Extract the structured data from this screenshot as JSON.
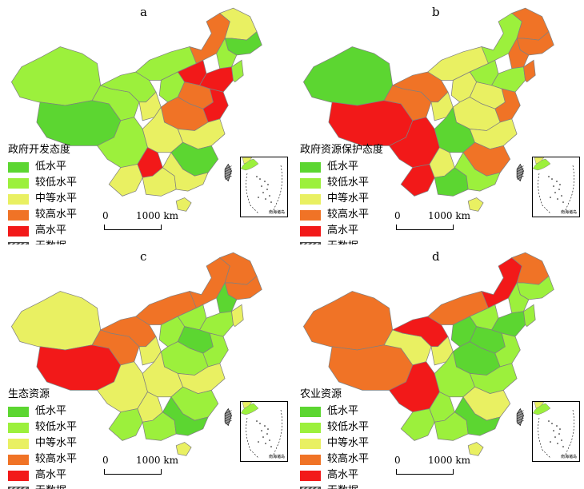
{
  "colors": {
    "low": "#5cd631",
    "lower": "#9cf03c",
    "mid": "#e9f062",
    "higher": "#f07326",
    "high": "#f21919",
    "nodata": "#555555",
    "border": "#808080"
  },
  "scale_bar": {
    "zero": "0",
    "dist": "1000 km"
  },
  "inset_caption": "南海诸岛",
  "panels": [
    {
      "label": "a",
      "legend_title": "政府开发态度",
      "legend": [
        "低水平",
        "较低水平",
        "中等水平",
        "较高水平",
        "高水平",
        "无数据"
      ],
      "regions": [
        "lower",
        "low",
        "lower",
        "lower",
        "lower",
        "mid",
        "mid",
        "high",
        "mid",
        "lower",
        "higher",
        "mid",
        "low",
        "lower",
        "lower",
        "high",
        "higher",
        "high",
        "high",
        "higher",
        "mid",
        "mid",
        "low",
        "mid",
        "mid",
        "lower"
      ]
    },
    {
      "label": "b",
      "legend_title": "政府资源保护态度",
      "legend": [
        "低水平",
        "较低水平",
        "中等水平",
        "较高水平",
        "高水平",
        "无数据"
      ],
      "regions": [
        "low",
        "high",
        "higher",
        "high",
        "higher",
        "mid",
        "high",
        "mid",
        "low",
        "mid",
        "lower",
        "higher",
        "higher",
        "higher",
        "mid",
        "lower",
        "mid",
        "lower",
        "higher",
        "mid",
        "low",
        "mid",
        "higher",
        "lower",
        "mid",
        "higher"
      ]
    },
    {
      "label": "c",
      "legend_title": "生态资源",
      "legend": [
        "低水平",
        "较低水平",
        "中等水平",
        "较高水平",
        "高水平",
        "无数据"
      ],
      "regions": [
        "mid",
        "high",
        "higher",
        "mid",
        "higher",
        "mid",
        "lower",
        "mid",
        "lower",
        "higher",
        "higher",
        "higher",
        "higher",
        "low",
        "lower",
        "lower",
        "low",
        "lower",
        "lower",
        "lower",
        "mid",
        "mid",
        "lower",
        "low",
        "mid",
        "mid"
      ]
    },
    {
      "label": "d",
      "legend_title": "农业资源",
      "legend": [
        "低水平",
        "较低水平",
        "中等水平",
        "较高水平",
        "高水平",
        "无数据"
      ],
      "regions": [
        "higher",
        "higher",
        "mid",
        "high",
        "high",
        "mid",
        "lower",
        "lower",
        "lower",
        "higher",
        "high",
        "higher",
        "lower",
        "lower",
        "low",
        "lower",
        "low",
        "low",
        "lower",
        "low",
        "lower",
        "lower",
        "mid",
        "low",
        "mid",
        "lower"
      ]
    }
  ]
}
